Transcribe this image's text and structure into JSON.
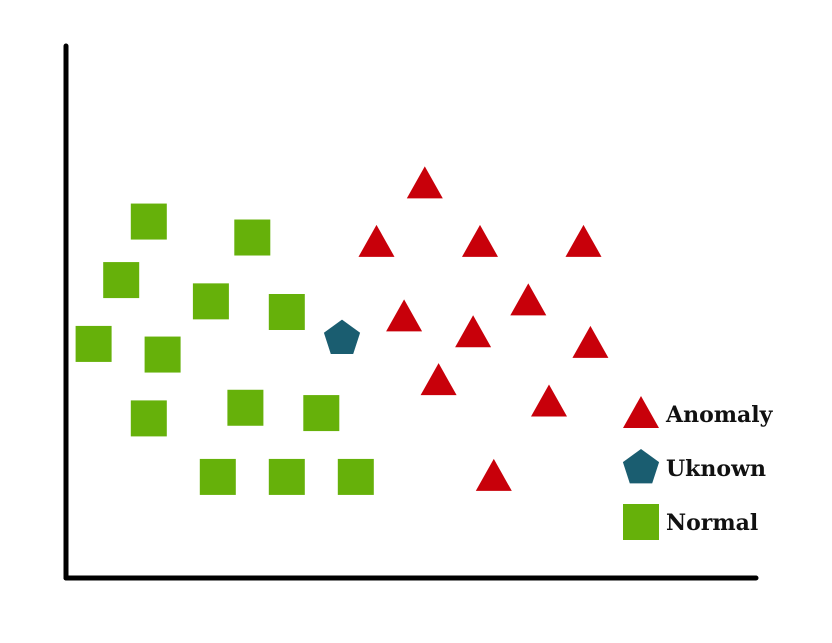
{
  "chart_data": {
    "type": "scatter",
    "title": "",
    "xlabel": "",
    "ylabel": "",
    "xlim": [
      0,
      100
    ],
    "ylim": [
      0,
      100
    ],
    "grid": false,
    "legend_position": "bottom-right",
    "series": [
      {
        "name": "Anomaly",
        "marker": "triangle",
        "color": "#c8000a",
        "points": [
          [
            52,
            74
          ],
          [
            45,
            63
          ],
          [
            60,
            63
          ],
          [
            75,
            63
          ],
          [
            67,
            52
          ],
          [
            49,
            49
          ],
          [
            59,
            46
          ],
          [
            76,
            44
          ],
          [
            54,
            37
          ],
          [
            70,
            33
          ],
          [
            62,
            19
          ]
        ]
      },
      {
        "name": "Uknown",
        "marker": "pentagon",
        "color": "#1a5d70",
        "points": [
          [
            40,
            45
          ]
        ]
      },
      {
        "name": "Normal",
        "marker": "square",
        "color": "#66b10a",
        "points": [
          [
            12,
            67
          ],
          [
            27,
            64
          ],
          [
            8,
            56
          ],
          [
            21,
            52
          ],
          [
            32,
            50
          ],
          [
            4,
            44
          ],
          [
            14,
            42
          ],
          [
            12,
            30
          ],
          [
            26,
            32
          ],
          [
            37,
            31
          ],
          [
            22,
            19
          ],
          [
            32,
            19
          ],
          [
            42,
            19
          ]
        ]
      }
    ]
  }
}
